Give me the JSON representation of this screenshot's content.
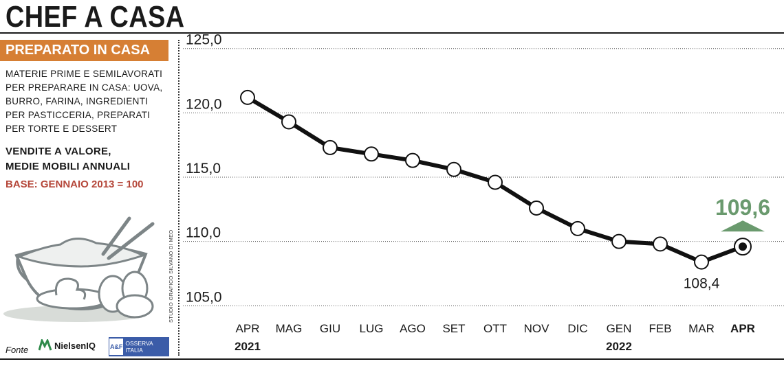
{
  "header": {
    "title": "CHEF A CASA"
  },
  "sidebar": {
    "badge": "PREPARATO IN CASA",
    "description_lines": [
      "MATERIE PRIME E SEMILAVORATI",
      "PER PREPARARE IN CASA: UOVA,",
      "BURRO, FARINA, INGREDIENTI",
      "PER PASTICCERIA,  PREPARATI",
      "PER TORTE E DESSERT"
    ],
    "measure_lines": [
      "VENDITE A VALORE,",
      "MEDIE MOBILI ANNUALI"
    ],
    "base": "BASE: GENNAIO 2013 = 100",
    "credit": "STUDIO GRAFICO SILVANO DI MEO",
    "fonte": "Fonte",
    "source_1": "NielsenIQ",
    "source_2": "OSSERVA ITALIA",
    "source_2_mark": "A&F",
    "illustration_icon": "mixing-bowl-with-eggs-icon",
    "colors": {
      "badge": "#d67f34",
      "base_text": "#b5473a",
      "highlight": "#6a9a6e",
      "osserva": "#3b5ca8"
    }
  },
  "chart_data": {
    "type": "line",
    "categories": [
      "APR",
      "MAG",
      "GIU",
      "LUG",
      "AGO",
      "SET",
      "OTT",
      "NOV",
      "DIC",
      "GEN",
      "FEB",
      "MAR",
      "APR"
    ],
    "year_labels": [
      {
        "category_index": 0,
        "text": "2021"
      },
      {
        "category_index": 9,
        "text": "2022"
      }
    ],
    "values": [
      121.2,
      119.3,
      117.3,
      116.8,
      116.3,
      115.6,
      114.6,
      112.6,
      111.0,
      110.0,
      109.8,
      108.4,
      109.6
    ],
    "yticks": [
      "125,0",
      "120,0",
      "115,0",
      "110,0",
      "105,0"
    ],
    "ytick_values": [
      125,
      120,
      115,
      110,
      105
    ],
    "ylim": [
      104,
      126
    ],
    "grid": true,
    "annotations": [
      {
        "category_index": 11,
        "text": "108,4",
        "position": "below"
      },
      {
        "category_index": 12,
        "text": "109,6",
        "position": "above",
        "color": "#6a9a6e",
        "arrow": "up-triangle"
      }
    ],
    "highlight_last": true,
    "colors": {
      "line": "#111111",
      "marker_fill": "#ffffff",
      "grid": "#555555"
    }
  }
}
